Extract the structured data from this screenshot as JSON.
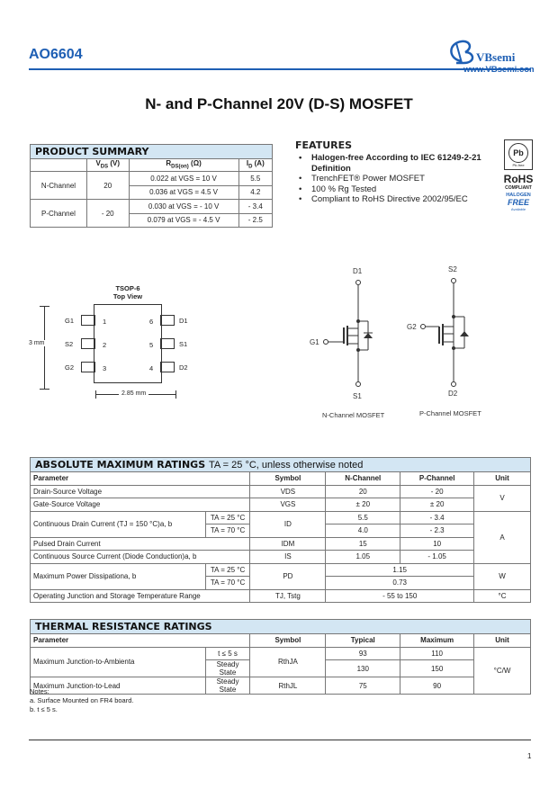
{
  "header": {
    "part_number": "AO6604",
    "logo_text": "VBsemi",
    "logo_url": "www.VBsemi.com"
  },
  "title": "N- and P-Channel 20V (D-S) MOSFET",
  "product_summary": {
    "title": "PRODUCT SUMMARY",
    "columns": [
      "",
      "VDS (V)",
      "RDS(on) (Ω)",
      "ID (A)"
    ],
    "rows": [
      {
        "channel": "N-Channel",
        "vds": "20",
        "r1": "0.022 at VGS = 10 V",
        "i1": "5.5",
        "r2": "0.036 at VGS = 4.5 V",
        "i2": "4.2"
      },
      {
        "channel": "P-Channel",
        "vds": "- 20",
        "r1": "0.030 at VGS = - 10 V",
        "i1": "- 3.4",
        "r2": "0.079 at VGS = - 4.5 V",
        "i2": "- 2.5"
      }
    ]
  },
  "features": {
    "title": "FEATURES",
    "items": [
      "Halogen-free According to IEC 61249-2-21 Definition",
      "TrenchFET® Power MOSFET",
      "100 % Rg Tested",
      "Compliant to RoHS Directive 2002/95/EC"
    ]
  },
  "badges": {
    "pb_free": "Pb-free",
    "rohs": "RoHS",
    "compliant": "COMPLIANT",
    "halogen": "HALOGEN",
    "free": "FREE",
    "available": "Available"
  },
  "package": {
    "name": "TSOP-6",
    "view": "Top View",
    "pins_left": [
      "G1",
      "S2",
      "G2"
    ],
    "pins_right": [
      "D1",
      "S1",
      "D2"
    ],
    "nums_left": [
      "1",
      "2",
      "3"
    ],
    "nums_right": [
      "6",
      "5",
      "4"
    ],
    "height": "3 mm",
    "width": "2.85 mm"
  },
  "schematic": {
    "n_label": "N-Channel MOSFET",
    "p_label": "P-Channel MOSFET",
    "n_pins": [
      "D1",
      "G1",
      "S1"
    ],
    "p_pins": [
      "S2",
      "G2",
      "D2"
    ]
  },
  "abs_max": {
    "title": "ABSOLUTE MAXIMUM RATINGS",
    "condition": "TA = 25 °C, unless otherwise noted",
    "columns": [
      "Parameter",
      "Symbol",
      "N-Channel",
      "P-Channel",
      "Unit"
    ],
    "rows": [
      [
        "Drain-Source Voltage",
        "VDS",
        "20",
        "- 20",
        "V"
      ],
      [
        "Gate-Source Voltage",
        "VGS",
        "± 20",
        "± 20"
      ],
      [
        "Continuous Drain Current (TJ = 150 °C)a, b",
        "TA = 25 °C",
        "ID",
        "5.5",
        "- 3.4",
        "A"
      ],
      [
        "TA = 70 °C",
        "4.0",
        "- 2.3"
      ],
      [
        "Pulsed Drain Current",
        "IDM",
        "15",
        "10"
      ],
      [
        "Continuous Source Current (Diode Conduction)a, b",
        "IS",
        "1.05",
        "- 1.05"
      ],
      [
        "Maximum Power Dissipationa, b",
        "TA = 25 °C",
        "PD",
        "1.15",
        "W"
      ],
      [
        "TA = 70 °C",
        "0.73"
      ],
      [
        "Operating Junction and Storage Temperature Range",
        "TJ, Tstg",
        "- 55 to 150",
        "°C"
      ]
    ]
  },
  "thermal": {
    "title": "THERMAL RESISTANCE RATINGS",
    "columns": [
      "Parameter",
      "Symbol",
      "Typical",
      "Maximum",
      "Unit"
    ],
    "rows": [
      [
        "Maximum Junction-to-Ambienta",
        "t ≤ 5 s",
        "RthJA",
        "93",
        "110",
        "°C/W"
      ],
      [
        "Steady State",
        "130",
        "150"
      ],
      [
        "Maximum Junction-to-Lead",
        "Steady State",
        "RthJL",
        "75",
        "90"
      ]
    ]
  },
  "notes": {
    "title": "Notes:",
    "a": "a. Surface Mounted on FR4 board.",
    "b": "b. t ≤ 5 s."
  },
  "page_number": "1",
  "colors": {
    "brand_blue": "#1e5fb4",
    "header_bg": "#d3e6f3"
  }
}
